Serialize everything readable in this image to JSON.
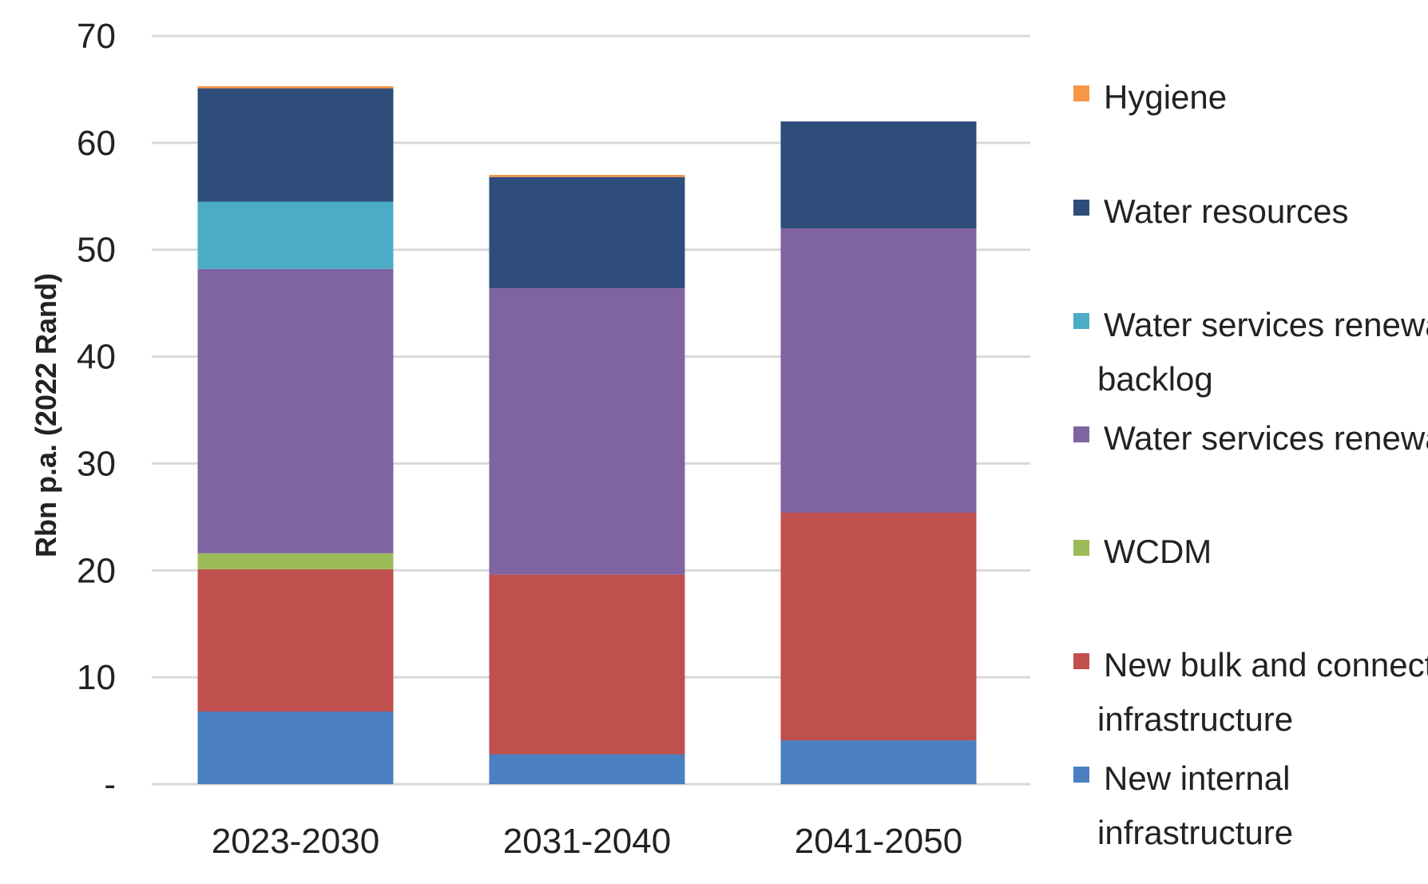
{
  "chart_data": {
    "type": "bar",
    "stacked": true,
    "title": "",
    "xlabel": "",
    "ylabel": "Rbn p.a. (2022 Rand)",
    "ylim": [
      0,
      70
    ],
    "yticks": [
      {
        "value": 0,
        "label": "-"
      },
      {
        "value": 10,
        "label": "10"
      },
      {
        "value": 20,
        "label": "20"
      },
      {
        "value": 30,
        "label": "30"
      },
      {
        "value": 40,
        "label": "40"
      },
      {
        "value": 50,
        "label": "50"
      },
      {
        "value": 60,
        "label": "60"
      },
      {
        "value": 70,
        "label": "70"
      }
    ],
    "grid": true,
    "legend_position": "right",
    "categories": [
      "2023-2030",
      "2031-2040",
      "2041-2050"
    ],
    "series": [
      {
        "name": "New internal infrastructure",
        "legend_lines": [
          "New internal",
          "infrastructure"
        ],
        "color": "#4a7fc1",
        "values": [
          6.8,
          2.8,
          4.1
        ]
      },
      {
        "name": "New bulk and connector infrastructure",
        "legend_lines": [
          "New bulk and connector",
          "infrastructure"
        ],
        "color": "#c0504d",
        "values": [
          13.3,
          16.8,
          21.3
        ]
      },
      {
        "name": "WCDM",
        "legend_lines": [
          "WCDM"
        ],
        "color": "#9bbb59",
        "values": [
          1.5,
          0,
          0
        ]
      },
      {
        "name": "Water services renewal",
        "legend_lines": [
          "Water services renewal"
        ],
        "color": "#8064a2",
        "values": [
          26.6,
          26.8,
          26.6
        ]
      },
      {
        "name": "Water services renewal backlog",
        "legend_lines": [
          "Water services renewal",
          "backlog"
        ],
        "color": "#4bacc6",
        "values": [
          6.3,
          0,
          0
        ]
      },
      {
        "name": "Water resources",
        "legend_lines": [
          "Water resources"
        ],
        "color": "#2e4d7b",
        "values": [
          10.6,
          10.4,
          10.0
        ]
      },
      {
        "name": "Hygiene",
        "legend_lines": [
          "Hygiene"
        ],
        "color": "#f79646",
        "values": [
          0.2,
          0.2,
          0.0
        ]
      }
    ]
  }
}
